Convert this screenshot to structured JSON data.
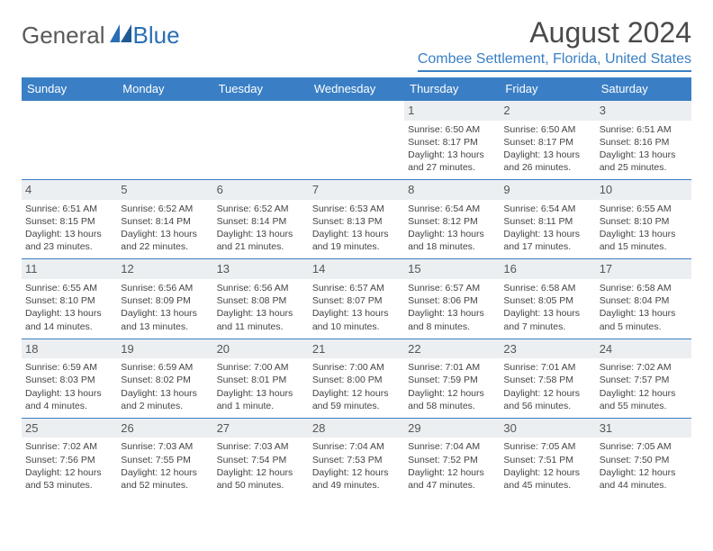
{
  "brand": {
    "part1": "General",
    "part2": "Blue"
  },
  "title": "August 2024",
  "location": "Combee Settlement, Florida, United States",
  "colors": {
    "header_bg": "#3a7fc5",
    "accent": "#3a7fc5",
    "daynum_bg": "#eceff1",
    "text": "#444444",
    "title_text": "#4a4a4a"
  },
  "typography": {
    "title_fontsize": 32,
    "location_fontsize": 16,
    "dow_fontsize": 13,
    "daynum_fontsize": 13,
    "body_fontsize": 10.5
  },
  "days_of_week": [
    "Sunday",
    "Monday",
    "Tuesday",
    "Wednesday",
    "Thursday",
    "Friday",
    "Saturday"
  ],
  "weeks": [
    [
      null,
      null,
      null,
      null,
      {
        "n": "1",
        "sunrise": "Sunrise: 6:50 AM",
        "sunset": "Sunset: 8:17 PM",
        "day1": "Daylight: 13 hours",
        "day2": "and 27 minutes."
      },
      {
        "n": "2",
        "sunrise": "Sunrise: 6:50 AM",
        "sunset": "Sunset: 8:17 PM",
        "day1": "Daylight: 13 hours",
        "day2": "and 26 minutes."
      },
      {
        "n": "3",
        "sunrise": "Sunrise: 6:51 AM",
        "sunset": "Sunset: 8:16 PM",
        "day1": "Daylight: 13 hours",
        "day2": "and 25 minutes."
      }
    ],
    [
      {
        "n": "4",
        "sunrise": "Sunrise: 6:51 AM",
        "sunset": "Sunset: 8:15 PM",
        "day1": "Daylight: 13 hours",
        "day2": "and 23 minutes."
      },
      {
        "n": "5",
        "sunrise": "Sunrise: 6:52 AM",
        "sunset": "Sunset: 8:14 PM",
        "day1": "Daylight: 13 hours",
        "day2": "and 22 minutes."
      },
      {
        "n": "6",
        "sunrise": "Sunrise: 6:52 AM",
        "sunset": "Sunset: 8:14 PM",
        "day1": "Daylight: 13 hours",
        "day2": "and 21 minutes."
      },
      {
        "n": "7",
        "sunrise": "Sunrise: 6:53 AM",
        "sunset": "Sunset: 8:13 PM",
        "day1": "Daylight: 13 hours",
        "day2": "and 19 minutes."
      },
      {
        "n": "8",
        "sunrise": "Sunrise: 6:54 AM",
        "sunset": "Sunset: 8:12 PM",
        "day1": "Daylight: 13 hours",
        "day2": "and 18 minutes."
      },
      {
        "n": "9",
        "sunrise": "Sunrise: 6:54 AM",
        "sunset": "Sunset: 8:11 PM",
        "day1": "Daylight: 13 hours",
        "day2": "and 17 minutes."
      },
      {
        "n": "10",
        "sunrise": "Sunrise: 6:55 AM",
        "sunset": "Sunset: 8:10 PM",
        "day1": "Daylight: 13 hours",
        "day2": "and 15 minutes."
      }
    ],
    [
      {
        "n": "11",
        "sunrise": "Sunrise: 6:55 AM",
        "sunset": "Sunset: 8:10 PM",
        "day1": "Daylight: 13 hours",
        "day2": "and 14 minutes."
      },
      {
        "n": "12",
        "sunrise": "Sunrise: 6:56 AM",
        "sunset": "Sunset: 8:09 PM",
        "day1": "Daylight: 13 hours",
        "day2": "and 13 minutes."
      },
      {
        "n": "13",
        "sunrise": "Sunrise: 6:56 AM",
        "sunset": "Sunset: 8:08 PM",
        "day1": "Daylight: 13 hours",
        "day2": "and 11 minutes."
      },
      {
        "n": "14",
        "sunrise": "Sunrise: 6:57 AM",
        "sunset": "Sunset: 8:07 PM",
        "day1": "Daylight: 13 hours",
        "day2": "and 10 minutes."
      },
      {
        "n": "15",
        "sunrise": "Sunrise: 6:57 AM",
        "sunset": "Sunset: 8:06 PM",
        "day1": "Daylight: 13 hours",
        "day2": "and 8 minutes."
      },
      {
        "n": "16",
        "sunrise": "Sunrise: 6:58 AM",
        "sunset": "Sunset: 8:05 PM",
        "day1": "Daylight: 13 hours",
        "day2": "and 7 minutes."
      },
      {
        "n": "17",
        "sunrise": "Sunrise: 6:58 AM",
        "sunset": "Sunset: 8:04 PM",
        "day1": "Daylight: 13 hours",
        "day2": "and 5 minutes."
      }
    ],
    [
      {
        "n": "18",
        "sunrise": "Sunrise: 6:59 AM",
        "sunset": "Sunset: 8:03 PM",
        "day1": "Daylight: 13 hours",
        "day2": "and 4 minutes."
      },
      {
        "n": "19",
        "sunrise": "Sunrise: 6:59 AM",
        "sunset": "Sunset: 8:02 PM",
        "day1": "Daylight: 13 hours",
        "day2": "and 2 minutes."
      },
      {
        "n": "20",
        "sunrise": "Sunrise: 7:00 AM",
        "sunset": "Sunset: 8:01 PM",
        "day1": "Daylight: 13 hours",
        "day2": "and 1 minute."
      },
      {
        "n": "21",
        "sunrise": "Sunrise: 7:00 AM",
        "sunset": "Sunset: 8:00 PM",
        "day1": "Daylight: 12 hours",
        "day2": "and 59 minutes."
      },
      {
        "n": "22",
        "sunrise": "Sunrise: 7:01 AM",
        "sunset": "Sunset: 7:59 PM",
        "day1": "Daylight: 12 hours",
        "day2": "and 58 minutes."
      },
      {
        "n": "23",
        "sunrise": "Sunrise: 7:01 AM",
        "sunset": "Sunset: 7:58 PM",
        "day1": "Daylight: 12 hours",
        "day2": "and 56 minutes."
      },
      {
        "n": "24",
        "sunrise": "Sunrise: 7:02 AM",
        "sunset": "Sunset: 7:57 PM",
        "day1": "Daylight: 12 hours",
        "day2": "and 55 minutes."
      }
    ],
    [
      {
        "n": "25",
        "sunrise": "Sunrise: 7:02 AM",
        "sunset": "Sunset: 7:56 PM",
        "day1": "Daylight: 12 hours",
        "day2": "and 53 minutes."
      },
      {
        "n": "26",
        "sunrise": "Sunrise: 7:03 AM",
        "sunset": "Sunset: 7:55 PM",
        "day1": "Daylight: 12 hours",
        "day2": "and 52 minutes."
      },
      {
        "n": "27",
        "sunrise": "Sunrise: 7:03 AM",
        "sunset": "Sunset: 7:54 PM",
        "day1": "Daylight: 12 hours",
        "day2": "and 50 minutes."
      },
      {
        "n": "28",
        "sunrise": "Sunrise: 7:04 AM",
        "sunset": "Sunset: 7:53 PM",
        "day1": "Daylight: 12 hours",
        "day2": "and 49 minutes."
      },
      {
        "n": "29",
        "sunrise": "Sunrise: 7:04 AM",
        "sunset": "Sunset: 7:52 PM",
        "day1": "Daylight: 12 hours",
        "day2": "and 47 minutes."
      },
      {
        "n": "30",
        "sunrise": "Sunrise: 7:05 AM",
        "sunset": "Sunset: 7:51 PM",
        "day1": "Daylight: 12 hours",
        "day2": "and 45 minutes."
      },
      {
        "n": "31",
        "sunrise": "Sunrise: 7:05 AM",
        "sunset": "Sunset: 7:50 PM",
        "day1": "Daylight: 12 hours",
        "day2": "and 44 minutes."
      }
    ]
  ]
}
